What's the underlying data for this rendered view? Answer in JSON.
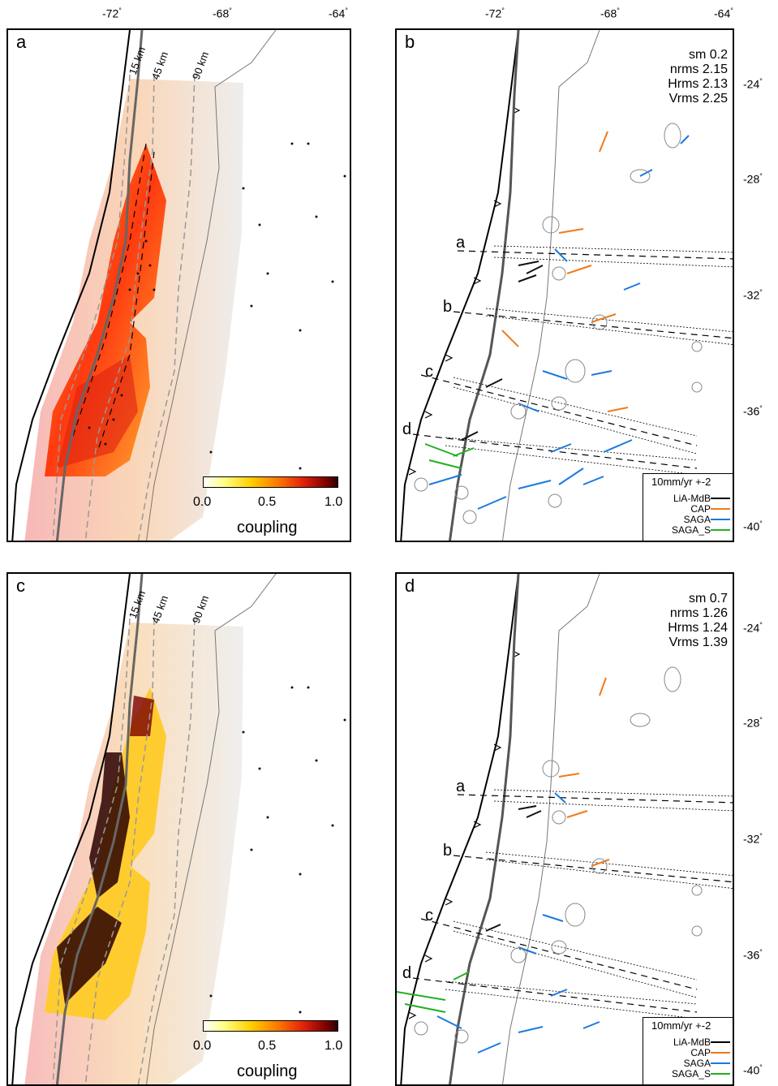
{
  "top_lon_ticks": [
    "-72",
    "-68",
    "-64"
  ],
  "bottom_lat_ticks": [
    "-24",
    "-28",
    "-32",
    "-36",
    "-40"
  ],
  "depth_labels": [
    "15 km",
    "45 km",
    "90 km"
  ],
  "colorbar": {
    "ticks": [
      "0.0",
      "0.5",
      "1.0"
    ],
    "title": "coupling"
  },
  "panels": {
    "a": {
      "letter": "a"
    },
    "b": {
      "letter": "b",
      "stats": [
        "sm 0.2",
        "nrms 2.15",
        "Hrms 2.13",
        "Vrms 2.25"
      ]
    },
    "c": {
      "letter": "c"
    },
    "d": {
      "letter": "d",
      "stats": [
        "sm 0.7",
        "nrms 1.26",
        "Hrms 1.24",
        "Vrms 1.39"
      ]
    }
  },
  "profiles": [
    "a",
    "b",
    "c",
    "d"
  ],
  "legend": {
    "title": "10mm/yr +-2",
    "entries": [
      {
        "name": "LiA-MdB",
        "color": "#000000"
      },
      {
        "name": "CAP",
        "color": "#f07a1a"
      },
      {
        "name": "SAGA",
        "color": "#1a7ae0"
      },
      {
        "name": "SAGA_S",
        "color": "#22b022"
      }
    ]
  },
  "colors": {
    "coast": "#000000",
    "border": "#555555",
    "depth_contour": "#999999"
  }
}
